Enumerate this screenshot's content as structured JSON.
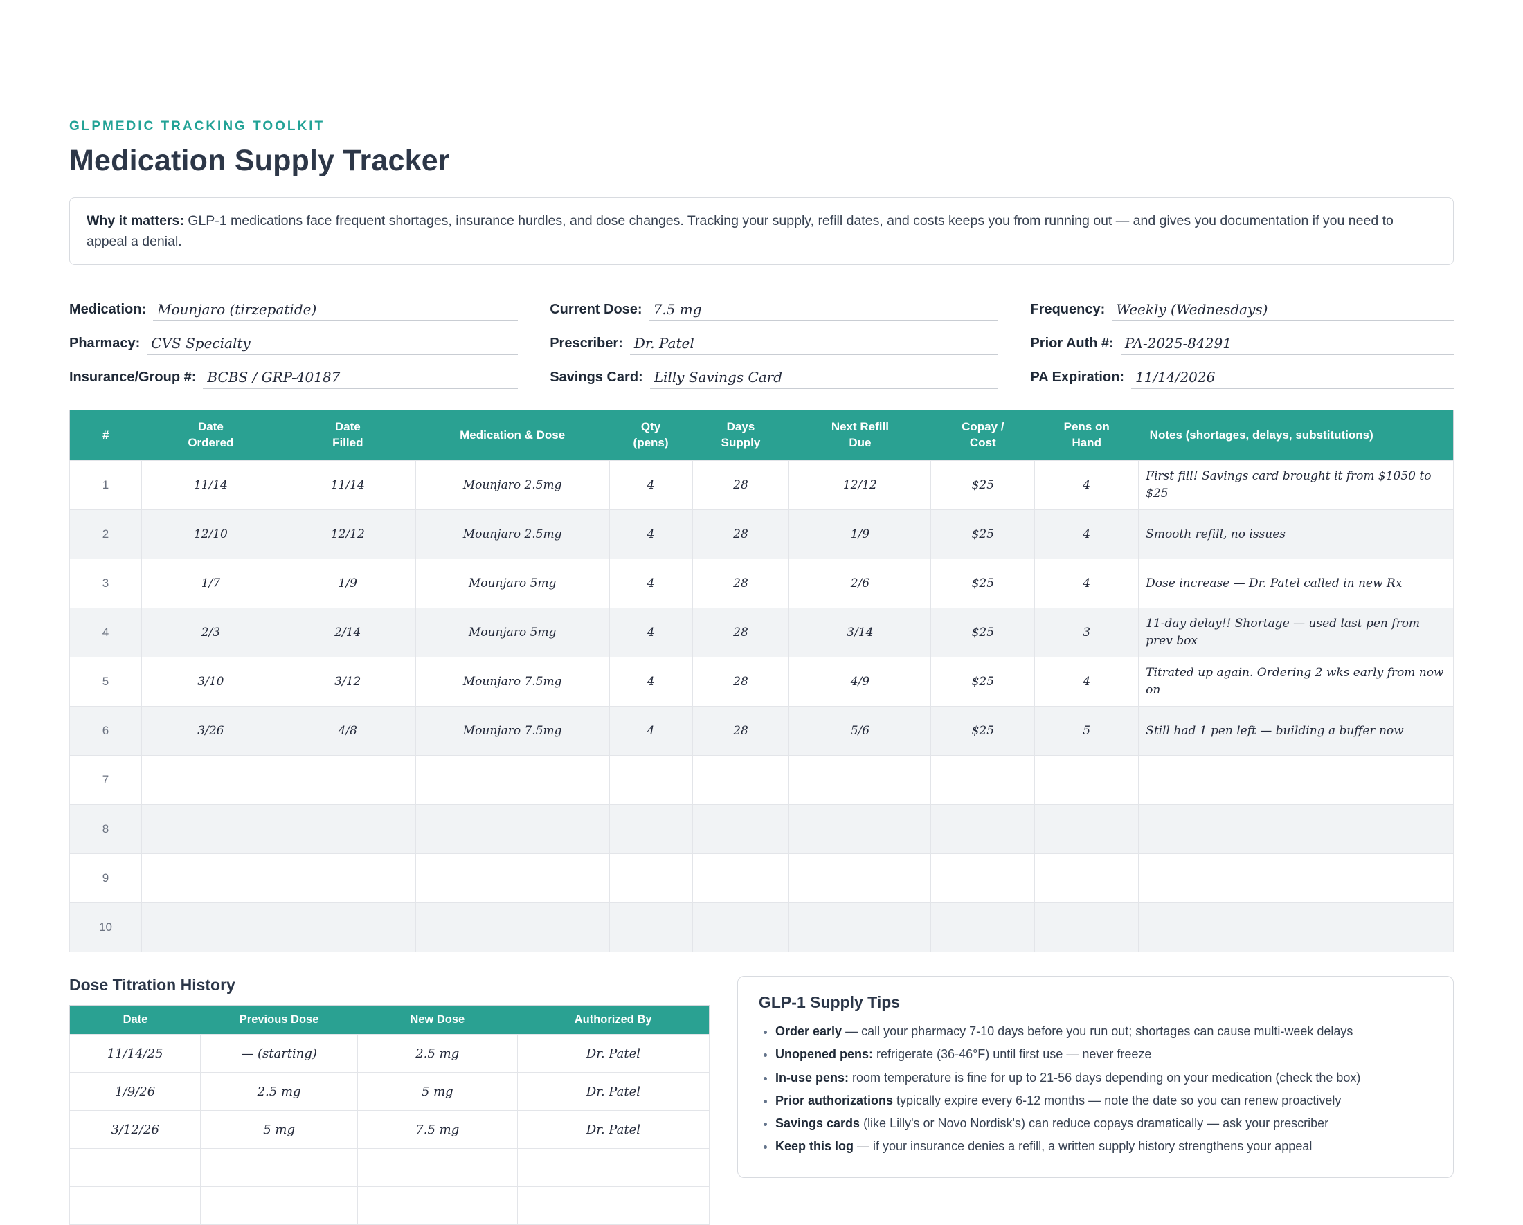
{
  "theme": {
    "accent_teal": "#2aa192",
    "kicker_teal": "#22a296",
    "title_color": "#2d3748",
    "alt_row": "#f1f3f5",
    "header_text": "#ffffff"
  },
  "header": {
    "kicker": "GLPMEDIC TRACKING TOOLKIT",
    "title": "Medication Supply Tracker"
  },
  "why_box": {
    "label": "Why it matters:",
    "text": "GLP-1 medications face frequent shortages, insurance hurdles, and dose changes. Tracking your supply, refill dates, and costs keeps you from running out — and gives you documentation if you need to appeal a denial."
  },
  "fields": [
    {
      "label": "Medication:",
      "value": "Mounjaro (tirzepatide)"
    },
    {
      "label": "Current Dose:",
      "value": "7.5 mg"
    },
    {
      "label": "Frequency:",
      "value": "Weekly (Wednesdays)"
    },
    {
      "label": "Pharmacy:",
      "value": "CVS Specialty"
    },
    {
      "label": "Prescriber:",
      "value": "Dr. Patel"
    },
    {
      "label": "Prior Auth #:",
      "value": "PA-2025-84291"
    },
    {
      "label": "Insurance/Group #:",
      "value": "BCBS / GRP-40187"
    },
    {
      "label": "Savings Card:",
      "value": "Lilly Savings Card"
    },
    {
      "label": "PA Expiration:",
      "value": "11/14/2026"
    }
  ],
  "supply_table": {
    "headers": [
      "#",
      "Date\nOrdered",
      "Date\nFilled",
      "Medication & Dose",
      "Qty\n(pens)",
      "Days\nSupply",
      "Next Refill\nDue",
      "Copay /\nCost",
      "Pens on\nHand",
      "Notes (shortages, delays, substitutions)"
    ],
    "rows": [
      [
        "1",
        "11/14",
        "11/14",
        "Mounjaro 2.5mg",
        "4",
        "28",
        "12/12",
        "$25",
        "4",
        "First fill! Savings card brought it from $1050 to $25"
      ],
      [
        "2",
        "12/10",
        "12/12",
        "Mounjaro 2.5mg",
        "4",
        "28",
        "1/9",
        "$25",
        "4",
        "Smooth refill, no issues"
      ],
      [
        "3",
        "1/7",
        "1/9",
        "Mounjaro 5mg",
        "4",
        "28",
        "2/6",
        "$25",
        "4",
        "Dose increase — Dr. Patel called in new Rx"
      ],
      [
        "4",
        "2/3",
        "2/14",
        "Mounjaro 5mg",
        "4",
        "28",
        "3/14",
        "$25",
        "3",
        "11-day delay!! Shortage — used last pen from prev box"
      ],
      [
        "5",
        "3/10",
        "3/12",
        "Mounjaro 7.5mg",
        "4",
        "28",
        "4/9",
        "$25",
        "4",
        "Titrated up again. Ordering 2 wks early from now on"
      ],
      [
        "6",
        "3/26",
        "4/8",
        "Mounjaro 7.5mg",
        "4",
        "28",
        "5/6",
        "$25",
        "5",
        "Still had 1 pen left — building a buffer now"
      ],
      [
        "7",
        "",
        "",
        "",
        "",
        "",
        "",
        "",
        "",
        ""
      ],
      [
        "8",
        "",
        "",
        "",
        "",
        "",
        "",
        "",
        "",
        ""
      ],
      [
        "9",
        "",
        "",
        "",
        "",
        "",
        "",
        "",
        "",
        ""
      ],
      [
        "10",
        "",
        "",
        "",
        "",
        "",
        "",
        "",
        "",
        ""
      ]
    ]
  },
  "titration": {
    "heading": "Dose Titration History",
    "headers": [
      "Date",
      "Previous Dose",
      "New Dose",
      "Authorized By"
    ],
    "rows": [
      [
        "11/14/25",
        "— (starting)",
        "2.5 mg",
        "Dr. Patel"
      ],
      [
        "1/9/26",
        "2.5 mg",
        "5 mg",
        "Dr. Patel"
      ],
      [
        "3/12/26",
        "5 mg",
        "7.5 mg",
        "Dr. Patel"
      ],
      [
        "",
        "",
        "",
        ""
      ],
      [
        "",
        "",
        "",
        ""
      ]
    ]
  },
  "tips": {
    "title": "GLP-1 Supply Tips",
    "items": [
      {
        "bold": "Order early",
        "rest": " — call your pharmacy 7-10 days before you run out; shortages can cause multi-week delays"
      },
      {
        "bold": "Unopened pens:",
        "rest": " refrigerate (36-46°F) until first use — never freeze"
      },
      {
        "bold": "In-use pens:",
        "rest": " room temperature is fine for up to 21-56 days depending on your medication (check the box)"
      },
      {
        "bold": "Prior authorizations",
        "rest": " typically expire every 6-12 months — note the date so you can renew proactively"
      },
      {
        "bold": "Savings cards",
        "rest": " (like Lilly's or Novo Nordisk's) can reduce copays dramatically — ask your prescriber"
      },
      {
        "bold": "Keep this log",
        "rest": " — if your insurance denies a refill, a written supply history strengthens your appeal"
      }
    ]
  }
}
